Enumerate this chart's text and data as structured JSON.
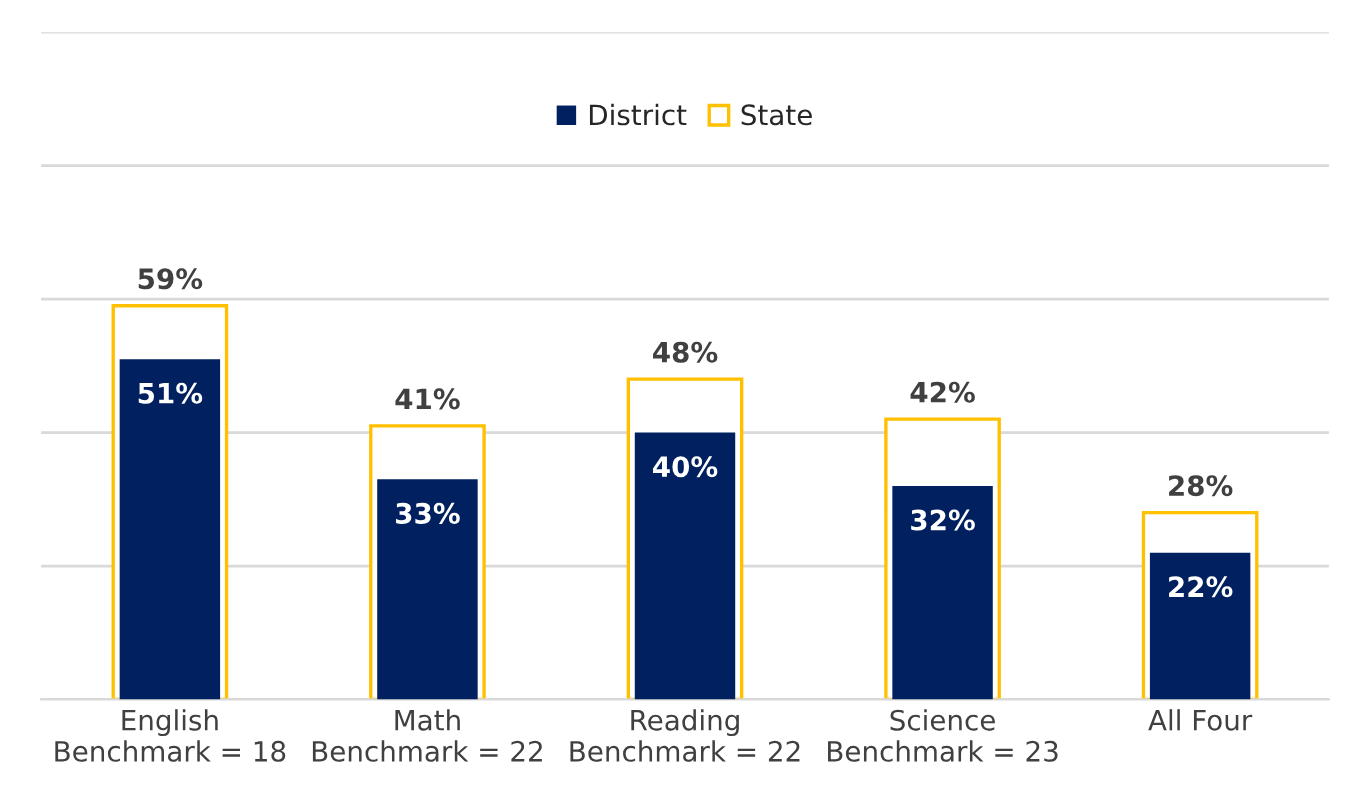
{
  "chart_data": {
    "type": "bar",
    "categories": [
      "English\nBenchmark = 18",
      "Math\nBenchmark = 22",
      "Reading\nBenchmark = 22",
      "Science\nBenchmark = 23",
      "All Four"
    ],
    "series": [
      {
        "name": "State",
        "color": "#ffc000",
        "values": [
          59,
          41,
          48,
          42,
          28
        ],
        "value_labels": [
          "59%",
          "41%",
          "48%",
          "42%",
          "28%"
        ]
      },
      {
        "name": "District",
        "color": "#002060",
        "values": [
          51,
          33,
          40,
          32,
          22
        ],
        "value_labels": [
          "51%",
          "33%",
          "40%",
          "32%",
          "22%"
        ]
      }
    ],
    "ylim": [
      0,
      100
    ],
    "yticks": [
      {
        "value": 0,
        "label": null
      },
      {
        "value": 20,
        "label": null
      },
      {
        "value": 40,
        "label": null
      },
      {
        "value": 60,
        "label": null
      },
      {
        "value": 80,
        "label": null
      },
      {
        "value": 100,
        "label": null
      }
    ],
    "grid": "y",
    "legend": "top",
    "tick_labels": "x"
  }
}
